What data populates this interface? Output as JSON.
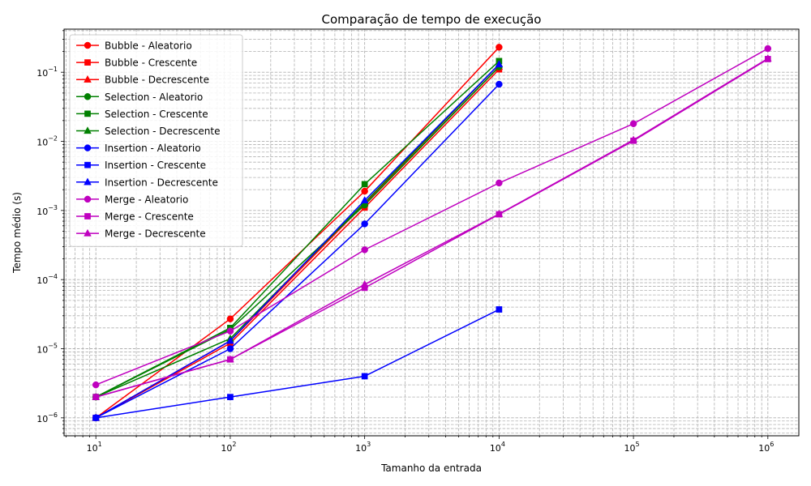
{
  "chart_data": {
    "type": "line",
    "title": "Comparação de tempo de execução",
    "xlabel": "Tamanho da entrada",
    "ylabel": "Tempo médio (s)",
    "xscale": "log",
    "yscale": "log",
    "xlim": [
      5.8,
      1700000
    ],
    "ylim": [
      5.5e-07,
      0.42
    ],
    "xticks": [
      {
        "value": 10,
        "base": "10",
        "exp": "1"
      },
      {
        "value": 100,
        "base": "10",
        "exp": "2"
      },
      {
        "value": 1000,
        "base": "10",
        "exp": "3"
      },
      {
        "value": 10000,
        "base": "10",
        "exp": "4"
      },
      {
        "value": 100000,
        "base": "10",
        "exp": "5"
      },
      {
        "value": 1000000,
        "base": "10",
        "exp": "6"
      }
    ],
    "yticks": [
      {
        "value": 1e-06,
        "base": "10",
        "exp": "−6"
      },
      {
        "value": 1e-05,
        "base": "10",
        "exp": "−5"
      },
      {
        "value": 0.0001,
        "base": "10",
        "exp": "−4"
      },
      {
        "value": 0.001,
        "base": "10",
        "exp": "−3"
      },
      {
        "value": 0.01,
        "base": "10",
        "exp": "−2"
      },
      {
        "value": 0.1,
        "base": "10",
        "exp": "−1"
      }
    ],
    "grid": "both major and minor, dashed",
    "legend_position": "upper-left",
    "series": [
      {
        "name": "Bubble - Aleatorio",
        "color": "#ff0000",
        "marker": "circle",
        "x": [
          10,
          100,
          1000,
          10000
        ],
        "y": [
          1e-06,
          2.7e-05,
          0.0019,
          0.23
        ]
      },
      {
        "name": "Bubble - Crescente",
        "color": "#ff0000",
        "marker": "square",
        "x": [
          10,
          100,
          1000,
          10000
        ],
        "y": [
          1e-06,
          1.2e-05,
          0.0011,
          0.11
        ]
      },
      {
        "name": "Bubble - Decrescente",
        "color": "#ff0000",
        "marker": "triangle",
        "x": [
          10,
          100,
          1000,
          10000
        ],
        "y": [
          1e-06,
          1.3e-05,
          0.00125,
          0.12
        ]
      },
      {
        "name": "Selection - Aleatorio",
        "color": "#008000",
        "marker": "circle",
        "x": [
          10,
          100,
          1000,
          10000
        ],
        "y": [
          2e-06,
          1.9e-05,
          0.0012,
          0.12
        ]
      },
      {
        "name": "Selection - Crescente",
        "color": "#008000",
        "marker": "square",
        "x": [
          10,
          100,
          1000,
          10000
        ],
        "y": [
          2e-06,
          2e-05,
          0.0024,
          0.145
        ]
      },
      {
        "name": "Selection - Decrescente",
        "color": "#008000",
        "marker": "triangle",
        "x": [
          10,
          100,
          1000,
          10000
        ],
        "y": [
          2e-06,
          1.4e-05,
          0.0013,
          0.13
        ]
      },
      {
        "name": "Insertion - Aleatorio",
        "color": "#0000ff",
        "marker": "circle",
        "x": [
          10,
          100,
          1000,
          10000
        ],
        "y": [
          1e-06,
          1e-05,
          0.00064,
          0.067
        ]
      },
      {
        "name": "Insertion - Crescente",
        "color": "#0000ff",
        "marker": "square",
        "x": [
          10,
          100,
          1000,
          10000
        ],
        "y": [
          1e-06,
          2e-06,
          4e-06,
          3.7e-05
        ]
      },
      {
        "name": "Insertion - Decrescente",
        "color": "#0000ff",
        "marker": "triangle",
        "x": [
          10,
          100,
          1000,
          10000
        ],
        "y": [
          1e-06,
          1.3e-05,
          0.0014,
          0.13
        ]
      },
      {
        "name": "Merge - Aleatorio",
        "color": "#bf00bf",
        "marker": "circle",
        "x": [
          10,
          100,
          1000,
          10000,
          100000,
          1000000
        ],
        "y": [
          3e-06,
          1.8e-05,
          0.00027,
          0.0025,
          0.018,
          0.22
        ]
      },
      {
        "name": "Merge - Crescente",
        "color": "#bf00bf",
        "marker": "square",
        "x": [
          10,
          100,
          1000,
          10000,
          100000,
          1000000
        ],
        "y": [
          2e-06,
          7e-06,
          7.6e-05,
          0.00088,
          0.0102,
          0.155
        ]
      },
      {
        "name": "Merge - Decrescente",
        "color": "#bf00bf",
        "marker": "triangle",
        "x": [
          10,
          100,
          1000,
          10000,
          100000,
          1000000
        ],
        "y": [
          2e-06,
          7e-06,
          8.5e-05,
          0.00089,
          0.0105,
          0.158
        ]
      }
    ]
  }
}
